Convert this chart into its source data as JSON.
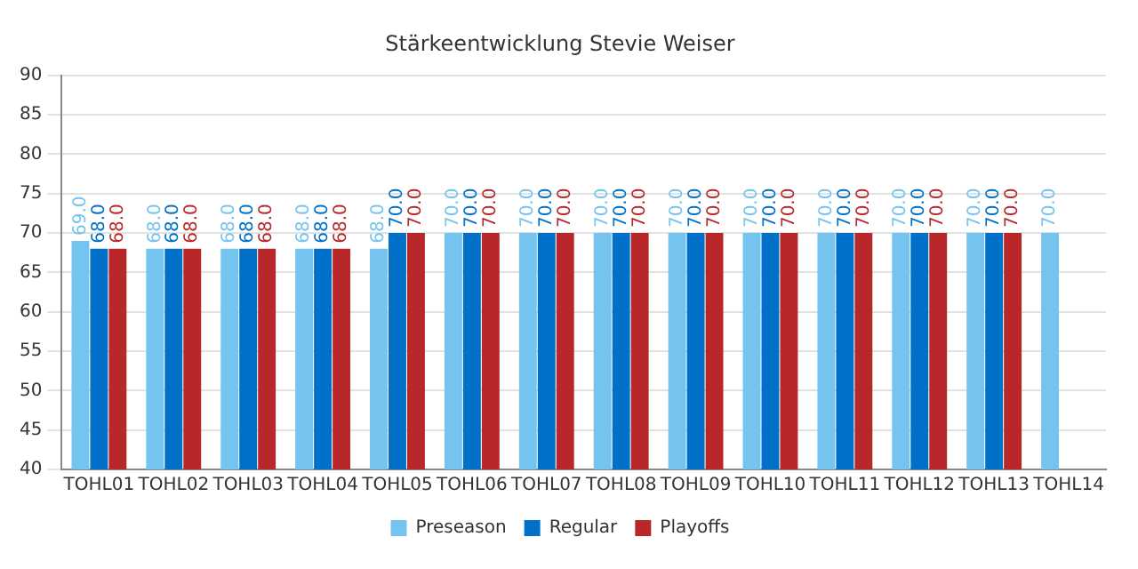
{
  "chart_data": {
    "type": "bar",
    "title": "Stärkeentwicklung Stevie Weiser",
    "categories": [
      "TOHL01",
      "TOHL02",
      "TOHL03",
      "TOHL04",
      "TOHL05",
      "TOHL06",
      "TOHL07",
      "TOHL08",
      "TOHL09",
      "TOHL10",
      "TOHL11",
      "TOHL12",
      "TOHL13",
      "TOHL14"
    ],
    "series": [
      {
        "name": "Preseason",
        "color": "#75c4f0",
        "values": [
          69,
          68,
          68,
          68,
          68,
          70,
          70,
          70,
          70,
          70,
          70,
          70,
          70,
          70
        ],
        "value_labels": [
          "69.0",
          "68.0",
          "68.0",
          "68.0",
          "68.0",
          "70.0",
          "70.0",
          "70.0",
          "70.0",
          "70.0",
          "70.0",
          "70.0",
          "70.0",
          "70.0"
        ]
      },
      {
        "name": "Regular",
        "color": "#0070c8",
        "values": [
          68,
          68,
          68,
          68,
          70,
          70,
          70,
          70,
          70,
          70,
          70,
          70,
          70,
          null
        ],
        "value_labels": [
          "68.0",
          "68.0",
          "68.0",
          "68.0",
          "70.0",
          "70.0",
          "70.0",
          "70.0",
          "70.0",
          "70.0",
          "70.0",
          "70.0",
          "70.0",
          null
        ]
      },
      {
        "name": "Playoffs",
        "color": "#b8282a",
        "values": [
          68,
          68,
          68,
          68,
          70,
          70,
          70,
          70,
          70,
          70,
          70,
          70,
          70,
          null
        ],
        "value_labels": [
          "68.0",
          "68.0",
          "68.0",
          "68.0",
          "70.0",
          "70.0",
          "70.0",
          "70.0",
          "70.0",
          "70.0",
          "70.0",
          "70.0",
          "70.0",
          null
        ]
      }
    ],
    "ylim": [
      40,
      90
    ],
    "yticks": [
      40,
      45,
      50,
      55,
      60,
      65,
      70,
      75,
      80,
      85,
      90
    ],
    "grid": "y",
    "legend": "bottom"
  }
}
